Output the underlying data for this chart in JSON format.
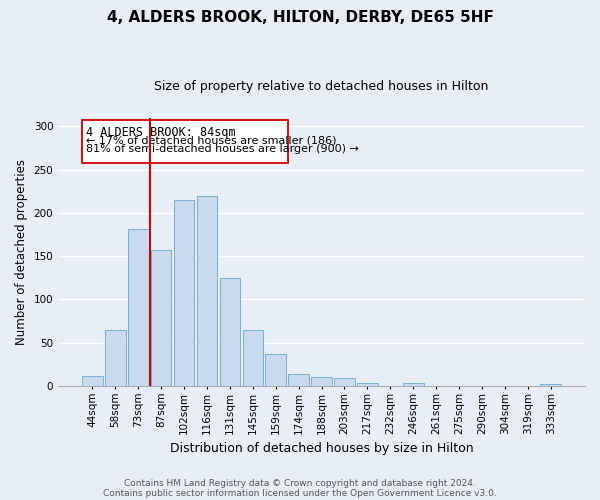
{
  "title": "4, ALDERS BROOK, HILTON, DERBY, DE65 5HF",
  "subtitle": "Size of property relative to detached houses in Hilton",
  "xlabel": "Distribution of detached houses by size in Hilton",
  "ylabel": "Number of detached properties",
  "bar_labels": [
    "44sqm",
    "58sqm",
    "73sqm",
    "87sqm",
    "102sqm",
    "116sqm",
    "131sqm",
    "145sqm",
    "159sqm",
    "174sqm",
    "188sqm",
    "203sqm",
    "217sqm",
    "232sqm",
    "246sqm",
    "261sqm",
    "275sqm",
    "290sqm",
    "304sqm",
    "319sqm",
    "333sqm"
  ],
  "bar_values": [
    12,
    65,
    181,
    157,
    215,
    220,
    125,
    65,
    37,
    14,
    10,
    9,
    4,
    0,
    3,
    0,
    0,
    0,
    0,
    0,
    2
  ],
  "bar_color": "#c9d9ee",
  "bar_edge_color": "#7aafd4",
  "vline_color": "#cc0000",
  "annotation_title": "4 ALDERS BROOK: 84sqm",
  "annotation_line1": "← 17% of detached houses are smaller (186)",
  "annotation_line2": "81% of semi-detached houses are larger (900) →",
  "ylim": [
    0,
    310
  ],
  "yticks": [
    0,
    50,
    100,
    150,
    200,
    250,
    300
  ],
  "footer1": "Contains HM Land Registry data © Crown copyright and database right 2024.",
  "footer2": "Contains public sector information licensed under the Open Government Licence v3.0.",
  "bg_color": "#e8eef8",
  "plot_bg_color": "#e8eef8",
  "grid_color": "#ffffff",
  "title_fontsize": 11,
  "subtitle_fontsize": 9,
  "xlabel_fontsize": 9,
  "ylabel_fontsize": 8.5,
  "tick_fontsize": 7.5,
  "footer_fontsize": 6.5
}
